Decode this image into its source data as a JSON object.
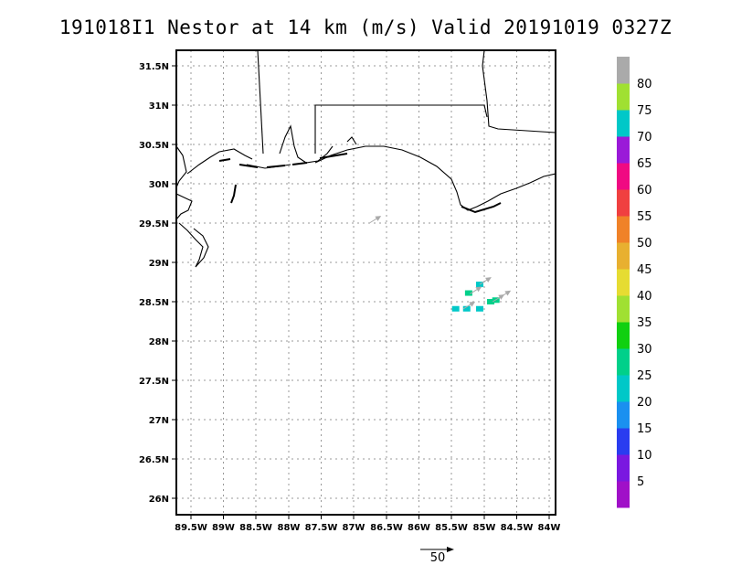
{
  "title": "191018I1 Nestor at 14 km (m/s) Valid 20191019 0327Z",
  "lat_labels": [
    "31.5N",
    "31N",
    "30.5N",
    "30N",
    "29.5N",
    "29N",
    "28.5N",
    "28N",
    "27.5N",
    "27N",
    "26.5N",
    "26N"
  ],
  "lon_labels": [
    "89.5W",
    "89W",
    "88.5W",
    "88W",
    "87.5W",
    "87W",
    "86.5W",
    "86W",
    "85.5W",
    "85W",
    "84.5W",
    "84W"
  ],
  "colorbar": {
    "labels": [
      "5",
      "10",
      "15",
      "20",
      "25",
      "30",
      "35",
      "40",
      "45",
      "50",
      "55",
      "60",
      "65",
      "70",
      "75",
      "80"
    ],
    "colors": [
      "#a010c8",
      "#7a18e0",
      "#2a3cf0",
      "#1a90f0",
      "#00c8c8",
      "#00d08a",
      "#10d010",
      "#a0e032",
      "#e6dc32",
      "#e8b030",
      "#f08228",
      "#f04040",
      "#f00a82",
      "#9a1ad8",
      "#00c8c8",
      "#a0e032",
      "#aaaaaa"
    ]
  },
  "wind_reference": {
    "label": "50"
  },
  "chart_data": {
    "type": "map",
    "title": "191018I1 Nestor at 14 km (m/s) Valid 20191019 0327Z",
    "xlim": [
      -89.5,
      -84.0
    ],
    "ylim": [
      25.8,
      31.7
    ],
    "grid": true,
    "colorbar_levels": [
      5,
      10,
      15,
      20,
      25,
      30,
      35,
      40,
      45,
      50,
      55,
      60,
      65,
      70,
      75,
      80
    ],
    "shaded_points": [
      {
        "lon": -85.05,
        "lat": 28.72,
        "value": 20
      },
      {
        "lon": -85.22,
        "lat": 28.61,
        "value": 25
      },
      {
        "lon": -85.42,
        "lat": 28.41,
        "value": 20
      },
      {
        "lon": -85.25,
        "lat": 28.41,
        "value": 20
      },
      {
        "lon": -85.05,
        "lat": 28.41,
        "value": 20
      },
      {
        "lon": -84.88,
        "lat": 28.5,
        "value": 25
      },
      {
        "lon": -84.8,
        "lat": 28.52,
        "value": 25
      }
    ],
    "wind_vectors": [
      {
        "lon": -86.75,
        "lat": 29.5
      },
      {
        "lon": -85.2,
        "lat": 28.6
      },
      {
        "lon": -85.05,
        "lat": 28.72
      },
      {
        "lon": -84.85,
        "lat": 28.5
      },
      {
        "lon": -84.75,
        "lat": 28.55
      },
      {
        "lon": -85.3,
        "lat": 28.41
      }
    ]
  }
}
